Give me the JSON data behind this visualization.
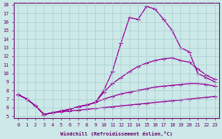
{
  "xlabel": "Windchill (Refroidissement éolien,°C)",
  "x_values": [
    0,
    1,
    2,
    3,
    4,
    5,
    6,
    7,
    8,
    9,
    10,
    11,
    12,
    13,
    14,
    15,
    16,
    17,
    18,
    19,
    20,
    21,
    22,
    23
  ],
  "line1": [
    7.5,
    7.0,
    6.2,
    5.2,
    5.4,
    5.6,
    5.8,
    6.1,
    6.3,
    6.6,
    8.0,
    10.2,
    13.5,
    16.5,
    16.3,
    17.8,
    17.5,
    16.3,
    15.0,
    13.0,
    12.5,
    10.0,
    9.5,
    9.0
  ],
  "line2": [
    7.5,
    7.0,
    6.2,
    5.2,
    5.4,
    5.6,
    5.8,
    6.1,
    6.3,
    6.6,
    7.8,
    8.8,
    9.5,
    10.2,
    10.8,
    11.2,
    11.5,
    11.7,
    11.8,
    11.5,
    11.3,
    10.5,
    9.8,
    9.3
  ],
  "line3": [
    7.5,
    7.0,
    6.2,
    5.2,
    5.4,
    5.6,
    5.8,
    6.1,
    6.3,
    6.6,
    7.0,
    7.3,
    7.6,
    7.8,
    8.0,
    8.2,
    8.4,
    8.5,
    8.6,
    8.7,
    8.8,
    8.8,
    8.7,
    8.5
  ],
  "line4": [
    7.5,
    7.0,
    6.2,
    5.2,
    5.4,
    5.5,
    5.6,
    5.7,
    5.8,
    5.9,
    6.0,
    6.1,
    6.2,
    6.3,
    6.4,
    6.5,
    6.6,
    6.7,
    6.8,
    6.9,
    7.0,
    7.1,
    7.2,
    7.3
  ],
  "ylim": [
    5,
    18
  ],
  "xlim": [
    0,
    23
  ],
  "yticks": [
    5,
    6,
    7,
    8,
    9,
    10,
    11,
    12,
    13,
    14,
    15,
    16,
    17,
    18
  ],
  "xticks": [
    0,
    1,
    2,
    3,
    4,
    5,
    6,
    7,
    8,
    9,
    10,
    11,
    12,
    13,
    14,
    15,
    16,
    17,
    18,
    19,
    20,
    21,
    22,
    23
  ],
  "line_color": "#990099",
  "bg_color": "#cce8e8",
  "grid_color": "#a8cccc",
  "axis_color": "#660066",
  "tick_color": "#660066",
  "markersize": 2.0,
  "linewidth": 1.0
}
